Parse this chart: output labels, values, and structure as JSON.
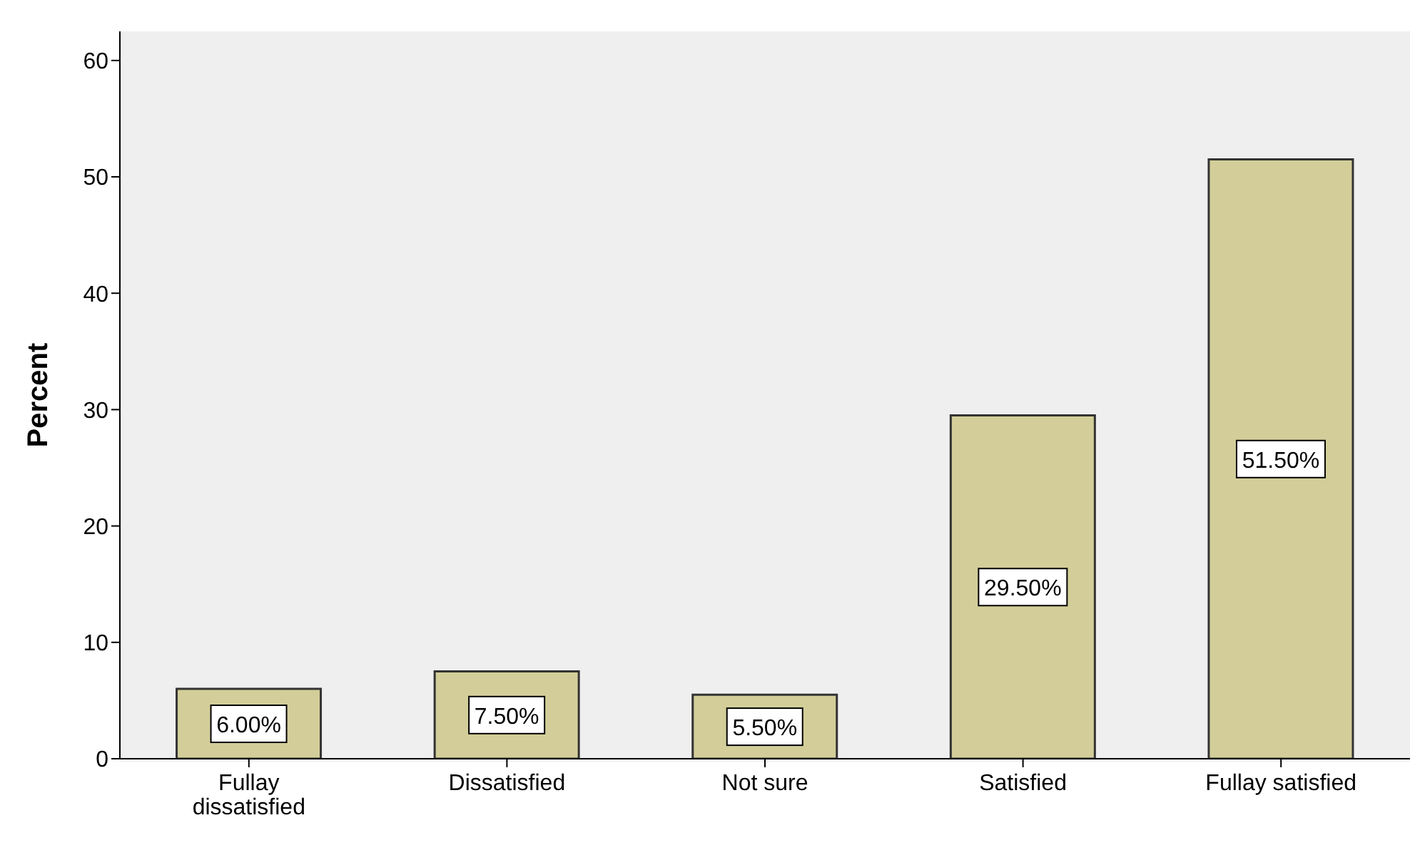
{
  "chart_data": {
    "type": "bar",
    "ylabel": "Percent",
    "categories": [
      "Fullay dissatisfied",
      "Dissatisfied",
      "Not sure",
      "Satisfied",
      "Fullay satisfied"
    ],
    "values": [
      6.0,
      7.5,
      5.5,
      29.5,
      51.5
    ],
    "value_labels": [
      "6.00%",
      "7.50%",
      "5.50%",
      "29.50%",
      "51.50%"
    ],
    "color": "#d3ce99",
    "ylim": [
      0,
      62.5
    ],
    "yticks": [
      0,
      10,
      20,
      30,
      40,
      50,
      60
    ],
    "grid": false,
    "legend": false
  }
}
